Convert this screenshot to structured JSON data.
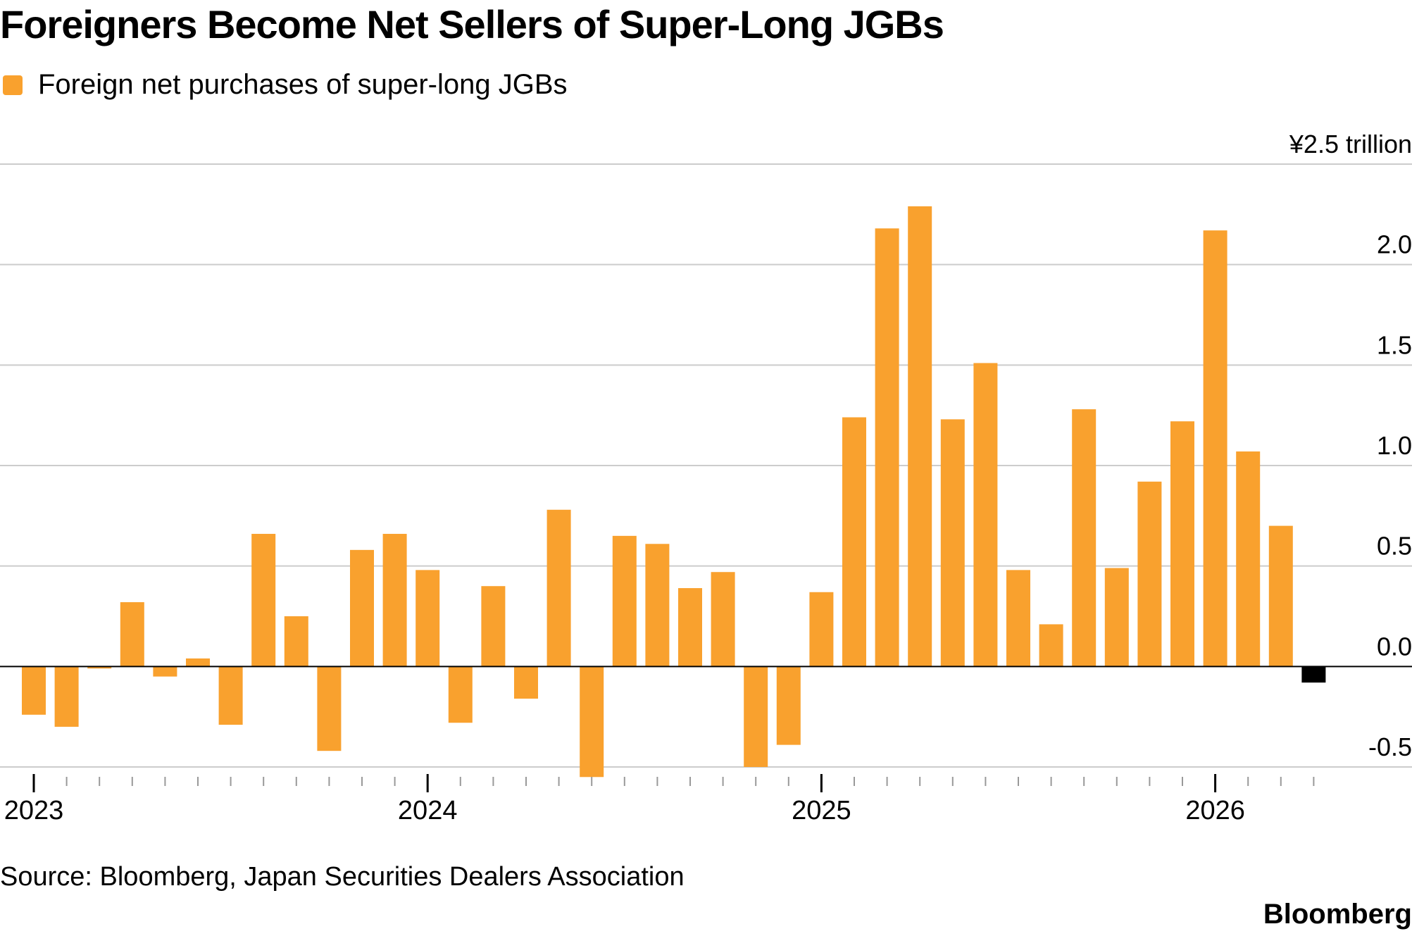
{
  "header": {
    "title": "Foreigners Become Net Sellers of Super-Long JGBs"
  },
  "legend": {
    "label": "Foreign net purchases of super-long JGBs"
  },
  "footer": {
    "source": "Source: Bloomberg, Japan Securities Dealers Association",
    "brand": "Bloomberg"
  },
  "colors": {
    "bar": "#F9A12E",
    "highlight_bar": "#000000",
    "grid": "#cccccc",
    "zero_line": "#000000"
  },
  "chart_data": {
    "type": "bar",
    "title": "Foreigners Become Net Sellers of Super-Long JGBs",
    "unit_label": "¥2.5 trillion",
    "ylim": [
      -0.5,
      2.5
    ],
    "yticks": [
      2.5,
      2.0,
      1.5,
      1.0,
      0.5,
      0.0,
      -0.5
    ],
    "ytick_labels": [
      "¥2.5 trillion",
      "2.0",
      "1.5",
      "1.0",
      "0.5",
      "0.0",
      "-0.5"
    ],
    "grid": true,
    "legend_position": "top-left",
    "xtick_labels": [
      "2023",
      "2024",
      "2025",
      "2026"
    ],
    "series": [
      {
        "name": "Foreign net purchases of super-long JGBs",
        "x": [
          "2023-01",
          "2023-02",
          "2023-03",
          "2023-04",
          "2023-05",
          "2023-06",
          "2023-07",
          "2023-08",
          "2023-09",
          "2023-10",
          "2023-11",
          "2023-12",
          "2024-01",
          "2024-02",
          "2024-03",
          "2024-04",
          "2024-05",
          "2024-06",
          "2024-07",
          "2024-08",
          "2024-09",
          "2024-10",
          "2024-11",
          "2024-12",
          "2025-01",
          "2025-02",
          "2025-03",
          "2025-04",
          "2025-05",
          "2025-06",
          "2025-07",
          "2025-08",
          "2025-09",
          "2025-10",
          "2025-11",
          "2025-12",
          "2026-01",
          "2026-02",
          "2026-03",
          "2026-04"
        ],
        "values": [
          -0.24,
          -0.3,
          -0.01,
          0.32,
          -0.05,
          0.04,
          -0.29,
          0.66,
          0.25,
          -0.42,
          0.58,
          0.66,
          0.48,
          -0.28,
          0.4,
          -0.16,
          0.78,
          -0.55,
          0.65,
          0.61,
          0.39,
          0.47,
          -0.5,
          -0.39,
          0.37,
          1.24,
          2.18,
          2.29,
          1.23,
          1.51,
          0.48,
          0.21,
          1.28,
          0.49,
          0.92,
          1.22,
          2.17,
          1.07,
          0.7,
          -0.08
        ]
      }
    ],
    "highlighted": [
      "2026-04"
    ]
  }
}
